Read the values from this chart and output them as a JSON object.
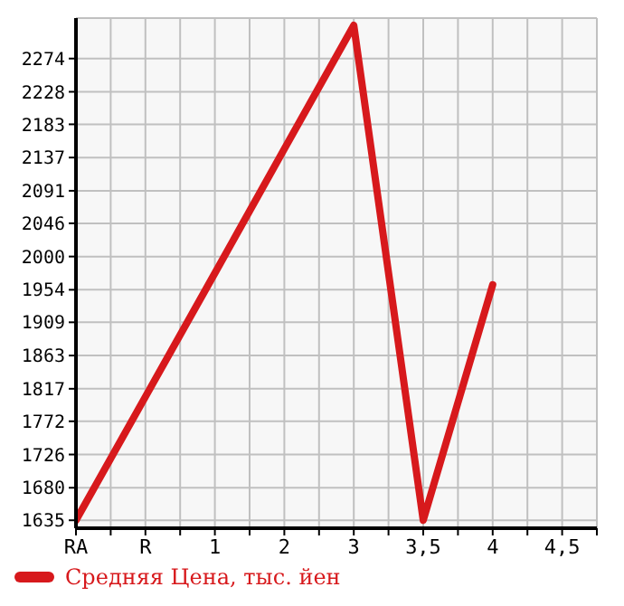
{
  "chart_data": {
    "type": "line",
    "categories": [
      "RA",
      "R",
      "1",
      "2",
      "3",
      "3,5",
      "4",
      "4,5"
    ],
    "series": [
      {
        "name": "Средняя Цена, тыс. йен",
        "color": "#d7191c",
        "values": [
          1635,
          1806,
          1977,
          2149,
          2320,
          1635,
          1961,
          null
        ]
      }
    ],
    "ylim": [
      1624,
      2330
    ],
    "yticks": [
      1635,
      1680,
      1726,
      1772,
      1817,
      1863,
      1909,
      1954,
      2000,
      2046,
      2091,
      2137,
      2183,
      2228,
      2274
    ],
    "grid": true,
    "legend": "bottom left",
    "marker": "none",
    "line_style": "solid"
  }
}
